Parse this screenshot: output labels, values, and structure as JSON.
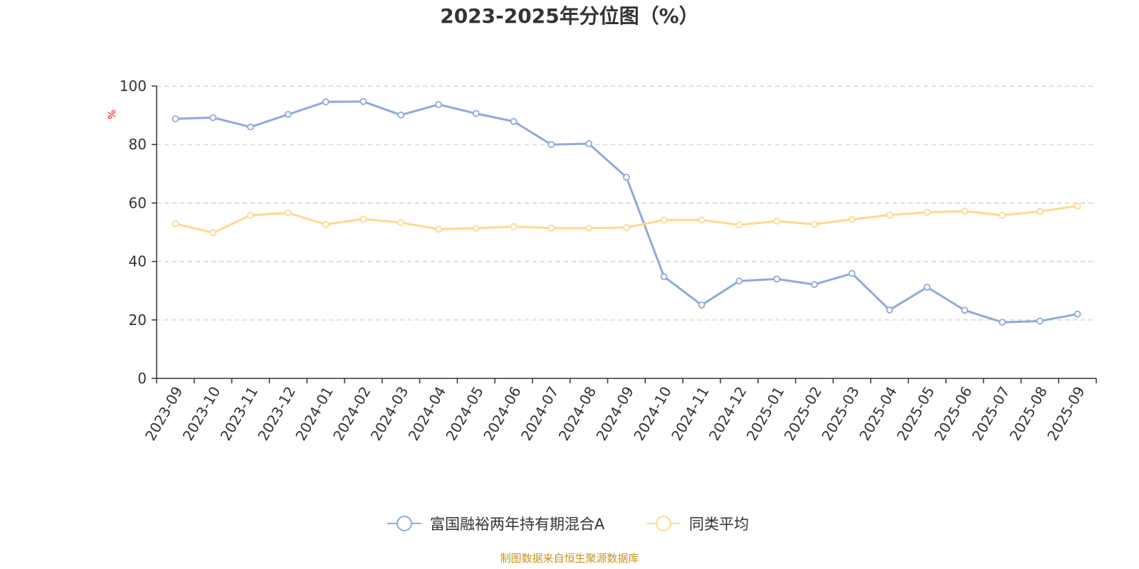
{
  "chart_data": {
    "type": "line",
    "title": "2023-2025年分位图（%）",
    "ylabel": "%",
    "xlabel": "",
    "ylim": [
      0,
      100
    ],
    "yticks": [
      "0",
      "20",
      "40",
      "60",
      "80",
      "100"
    ],
    "grid": "horizontal dashed",
    "legend_position": "bottom-center",
    "categories": [
      "2023-09",
      "2023-10",
      "2023-11",
      "2023-12",
      "2024-01",
      "2024-02",
      "2024-03",
      "2024-04",
      "2024-05",
      "2024-06",
      "2024-07",
      "2024-08",
      "2024-09",
      "2024-10",
      "2024-11",
      "2024-12",
      "2025-01",
      "2025-02",
      "2025-03",
      "2025-04",
      "2025-05",
      "2025-06",
      "2025-07",
      "2025-08",
      "2025-09"
    ],
    "series": [
      {
        "name": "富国融裕两年持有期混合A",
        "color": "#8eaadb",
        "values": [
          88.8,
          89.2,
          86.0,
          90.3,
          94.6,
          94.7,
          90.1,
          93.7,
          90.6,
          87.9,
          80.0,
          80.3,
          68.8,
          34.8,
          25.1,
          33.3,
          34.0,
          32.1,
          35.9,
          23.4,
          31.2,
          23.3,
          19.2,
          19.6,
          22.0
        ]
      },
      {
        "name": "同类平均",
        "color": "#ffd98e",
        "values": [
          52.9,
          49.8,
          55.8,
          56.6,
          52.7,
          54.5,
          53.3,
          51.0,
          51.4,
          51.9,
          51.4,
          51.4,
          51.6,
          54.2,
          54.2,
          52.5,
          53.8,
          52.7,
          54.4,
          55.9,
          56.8,
          57.2,
          55.8,
          57.1,
          59.0
        ]
      }
    ]
  },
  "source_text": "制图数据来自恒生聚源数据库",
  "colors": {
    "axis": "#333333",
    "grid": "#cccccc",
    "ylabel": "#ff0000",
    "source": "#c8941f"
  }
}
